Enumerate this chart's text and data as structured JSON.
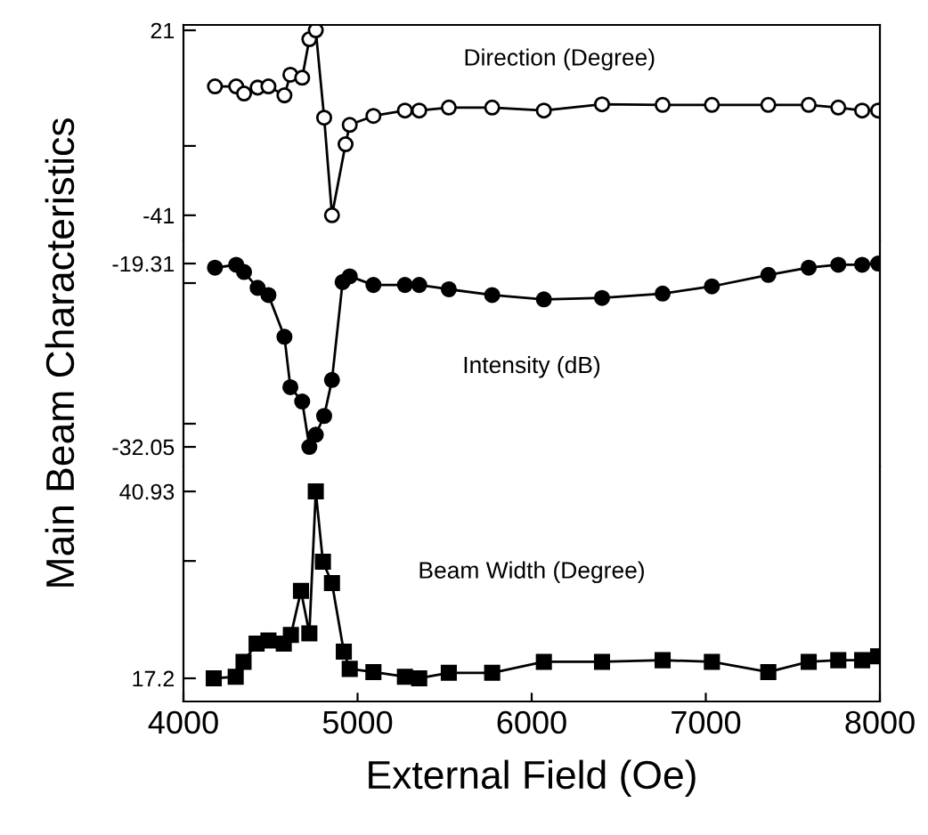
{
  "chart_data": [
    {
      "type": "line",
      "ylabel": null,
      "xlim": [
        4000,
        8000
      ],
      "ylim": [
        -49.4,
        22.8
      ],
      "yticks": [
        21,
        {
          "value": -17.75,
          "label": null
        },
        -41
      ],
      "tick_labels": "y",
      "marker": "circle",
      "line_style": "solid",
      "grid": false,
      "legend": false,
      "x": [
        4181,
        4303,
        4348,
        4426,
        4488,
        4580,
        4614,
        4682,
        4723,
        4760,
        4808,
        4853,
        4931,
        4955,
        5091,
        5272,
        5354,
        5524,
        5773,
        6070,
        6404,
        6752,
        7035,
        7359,
        7591,
        7761,
        7898,
        7990
      ],
      "series": [
        {
          "name": "Direction (Degree)",
          "color": "#000000",
          "values": [
            2.2,
            2.2,
            -0.2,
            1.8,
            2.2,
            -0.8,
            6.1,
            5.1,
            18.0,
            21,
            -8.3,
            -41,
            -17.2,
            -10.7,
            -7.7,
            -5.9,
            -5.9,
            -4.9,
            -4.9,
            -5.9,
            -3.8,
            -4.0,
            -4.0,
            -4.0,
            -4.0,
            -4.9,
            -5.9,
            -5.9
          ]
        }
      ]
    },
    {
      "type": "line",
      "ylim": [
        -33.41,
        -17.7
      ],
      "yticks": [
        {
          "value": -20.67,
          "label": null
        },
        {
          "value": -30.44,
          "label": null
        },
        {
          "value": -19.31,
          "label": "-19.31"
        },
        {
          "value": -32.05,
          "label": "-32.05"
        }
      ],
      "tick_labels": "y",
      "marker": "circle",
      "line_style": "solid",
      "grid": false,
      "legend": false,
      "xlim": [
        4000,
        8000
      ],
      "ylabel": "Main Beam Characteristics",
      "x": [
        4181,
        4303,
        4348,
        4426,
        4488,
        4580,
        4614,
        4682,
        4723,
        4760,
        4808,
        4853,
        4914,
        4955,
        5091,
        5272,
        5354,
        5524,
        5773,
        6070,
        6404,
        6752,
        7035,
        7359,
        7591,
        7761,
        7898,
        7990
      ],
      "series": [
        {
          "name": "Intensity (dB)",
          "color": "#000000",
          "values": [
            -19.6,
            -19.4,
            -19.9,
            -21.0,
            -21.5,
            -24.4,
            -27.9,
            -28.9,
            -32.05,
            -31.2,
            -29.9,
            -27.4,
            -20.6,
            -20.2,
            -20.8,
            -20.8,
            -20.8,
            -21.1,
            -21.5,
            -21.8,
            -21.7,
            -21.4,
            -20.9,
            -20.1,
            -19.6,
            -19.4,
            -19.4,
            -19.31
          ]
        }
      ]
    },
    {
      "type": "line",
      "xlabel": "External Field (Oe)",
      "xlim": [
        4000,
        8000
      ],
      "xticks": [
        4000,
        5000,
        6000,
        7000,
        8000
      ],
      "ylim": [
        14.26,
        44.1
      ],
      "yticks": [
        {
          "value": 32.1,
          "label": null
        },
        40.93,
        17.2
      ],
      "marker": "square",
      "line_style": "solid",
      "grid": false,
      "legend": false,
      "x": [
        4174,
        4300,
        4345,
        4420,
        4488,
        4576,
        4617,
        4675,
        4723,
        4760,
        4801,
        4853,
        4921,
        4955,
        5091,
        5272,
        5354,
        5524,
        5773,
        6070,
        6404,
        6752,
        7035,
        7359,
        7591,
        7761,
        7898,
        7990
      ],
      "series": [
        {
          "name": "Beam Width (Degree)",
          "color": "#000000",
          "values": [
            17.2,
            17.4,
            19.3,
            21.6,
            22.0,
            21.6,
            22.7,
            28.3,
            22.9,
            40.93,
            32.0,
            29.3,
            20.6,
            18.4,
            18.0,
            17.4,
            17.2,
            17.9,
            17.9,
            19.3,
            19.3,
            19.5,
            19.3,
            18.0,
            19.3,
            19.5,
            19.5,
            20.0
          ]
        }
      ]
    }
  ]
}
